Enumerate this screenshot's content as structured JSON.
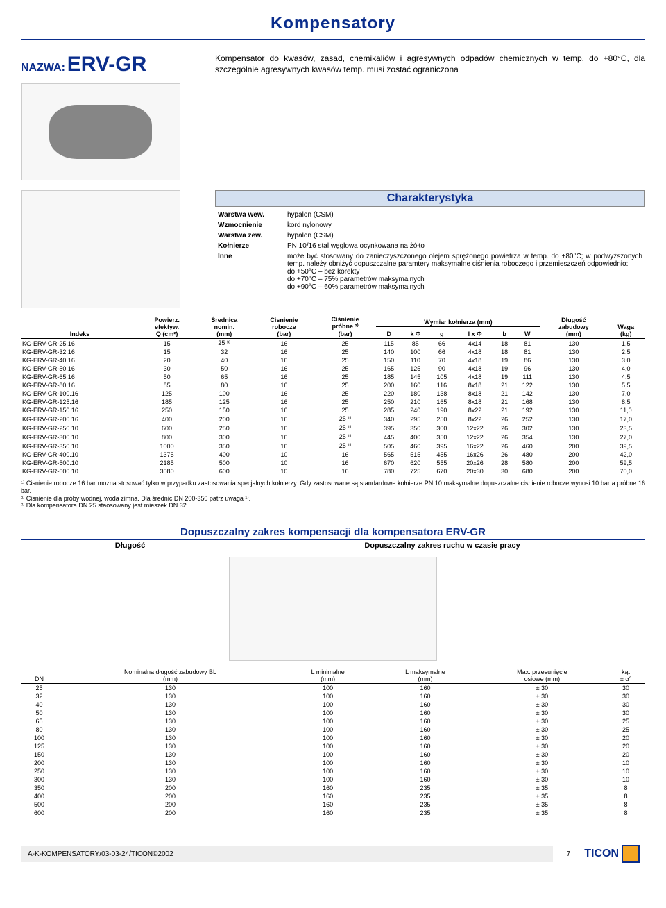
{
  "page_title": "Kompensatory",
  "name_label": "NAZWA:",
  "model": "ERV-GR",
  "description": "Kompensator do kwasów, zasad, chemikaliów i agresywnych odpadów chemicznych w temp. do +80°C, dla szczególnie agresywnych kwasów temp. musi zostać ograniczona",
  "char_title": "Charakterystyka",
  "char_rows": [
    {
      "k": "Warstwa wew.",
      "v": "hypalon (CSM)"
    },
    {
      "k": "Wzmocnienie",
      "v": "kord nylonowy"
    },
    {
      "k": "Warstwa zew.",
      "v": "hypalon (CSM)"
    },
    {
      "k": "Kołnierze",
      "v": "PN 10/16 stal węglowa ocynkowana na żółto"
    },
    {
      "k": "Inne",
      "v": "może być stosowany do zanieczyszczonego olejem sprężonego powietrza w temp. do +80°C; w podwyższonych temp. należy obniżyć dopuszczalne paramtery maksymalne ciśnienia roboczego i przemieszczeń odpowiednio:\ndo +50°C – bez korekty\ndo +70°C – 75% parametrów maksymalnych\ndo +90°C – 60% parametrów maksymalnych"
    }
  ],
  "table1": {
    "headers": {
      "indeks": "Indeks",
      "pow": "Powierz.\nefektyw.\nQ (cm²)",
      "sred": "Średnica\nnomin.\n(mm)",
      "crob": "Cisnienie\nrobocze\n(bar)",
      "cprob": "Ciśnienie\npróbne ²⁾\n(bar)",
      "wymiar": "Wymiar kołnierza (mm)",
      "D": "D",
      "kPhi": "k Φ",
      "g": "g",
      "lxPhi": "l x Φ",
      "b": "b",
      "W": "W",
      "dl": "Długość\nzabudowy\n(mm)",
      "waga": "Waga\n(kg)"
    },
    "rows": [
      [
        "KG-ERV-GR-25.16",
        "15",
        "25 ³⁾",
        "16",
        "25",
        "115",
        "85",
        "66",
        "4x14",
        "18",
        "81",
        "130",
        "1,5"
      ],
      [
        "KG-ERV-GR-32.16",
        "15",
        "32",
        "16",
        "25",
        "140",
        "100",
        "66",
        "4x18",
        "18",
        "81",
        "130",
        "2,5"
      ],
      [
        "KG-ERV-GR-40.16",
        "20",
        "40",
        "16",
        "25",
        "150",
        "110",
        "70",
        "4x18",
        "19",
        "86",
        "130",
        "3,0"
      ],
      [
        "KG-ERV-GR-50.16",
        "30",
        "50",
        "16",
        "25",
        "165",
        "125",
        "90",
        "4x18",
        "19",
        "96",
        "130",
        "4,0"
      ],
      [
        "KG-ERV-GR-65.16",
        "50",
        "65",
        "16",
        "25",
        "185",
        "145",
        "105",
        "4x18",
        "19",
        "111",
        "130",
        "4,5"
      ],
      [
        "KG-ERV-GR-80.16",
        "85",
        "80",
        "16",
        "25",
        "200",
        "160",
        "116",
        "8x18",
        "21",
        "122",
        "130",
        "5,5"
      ],
      [
        "KG-ERV-GR-100.16",
        "125",
        "100",
        "16",
        "25",
        "220",
        "180",
        "138",
        "8x18",
        "21",
        "142",
        "130",
        "7,0"
      ],
      [
        "KG-ERV-GR-125.16",
        "185",
        "125",
        "16",
        "25",
        "250",
        "210",
        "165",
        "8x18",
        "21",
        "168",
        "130",
        "8,5"
      ],
      [
        "KG-ERV-GR-150.16",
        "250",
        "150",
        "16",
        "25",
        "285",
        "240",
        "190",
        "8x22",
        "21",
        "192",
        "130",
        "11,0"
      ],
      [
        "KG-ERV-GR-200.16",
        "400",
        "200",
        "16",
        "25 ¹⁾",
        "340",
        "295",
        "250",
        "8x22",
        "26",
        "252",
        "130",
        "17,0"
      ],
      [
        "KG-ERV-GR-250.10",
        "600",
        "250",
        "16",
        "25 ¹⁾",
        "395",
        "350",
        "300",
        "12x22",
        "26",
        "302",
        "130",
        "23,5"
      ],
      [
        "KG-ERV-GR-300.10",
        "800",
        "300",
        "16",
        "25 ¹⁾",
        "445",
        "400",
        "350",
        "12x22",
        "26",
        "354",
        "130",
        "27,0"
      ],
      [
        "KG-ERV-GR-350.10",
        "1000",
        "350",
        "16",
        "25 ¹⁾",
        "505",
        "460",
        "395",
        "16x22",
        "26",
        "460",
        "200",
        "39,5"
      ],
      [
        "KG-ERV-GR-400.10",
        "1375",
        "400",
        "10",
        "16",
        "565",
        "515",
        "455",
        "16x26",
        "26",
        "480",
        "200",
        "42,0"
      ],
      [
        "KG-ERV-GR-500.10",
        "2185",
        "500",
        "10",
        "16",
        "670",
        "620",
        "555",
        "20x26",
        "28",
        "580",
        "200",
        "59,5"
      ],
      [
        "KG-ERV-GR-600.10",
        "3080",
        "600",
        "10",
        "16",
        "780",
        "725",
        "670",
        "20x30",
        "30",
        "680",
        "200",
        "70,0"
      ]
    ]
  },
  "footnote1": "¹⁾ Cisnienie robocze 16 bar można stosować tylko w przypadku zastosowania specjalnych kołnierzy. Gdy zastosowane są standardowe kołnierze PN 10 maksymalne dopuszczalne cisnienie robocze wynosi 10 bar a próbne 16 bar.",
  "footnote2": "²⁾ Cisnienie dla próby wodnej, woda zimna. Dla średnic DN 200-350 patrz uwaga ¹⁾.",
  "footnote3": "³⁾ Dla kompensatora DN 25 staosowany jest mieszek DN 32.",
  "comp_title": "Dopuszczalny zakres kompensacji dla kompensatora ERV-GR",
  "comp_left": "Długość",
  "comp_right": "Dopuszczalny zakres ruchu w czasie pracy",
  "table2": {
    "headers": [
      "DN",
      "Nominalna długość zabudowy BL\n(mm)",
      "L minimalne\n(mm)",
      "L maksymalne\n(mm)",
      "Max. przesunięcie\nosiowe (mm)",
      "kąt\n± α°"
    ],
    "rows": [
      [
        "25",
        "130",
        "100",
        "160",
        "± 30",
        "30"
      ],
      [
        "32",
        "130",
        "100",
        "160",
        "± 30",
        "30"
      ],
      [
        "40",
        "130",
        "100",
        "160",
        "± 30",
        "30"
      ],
      [
        "50",
        "130",
        "100",
        "160",
        "± 30",
        "30"
      ],
      [
        "65",
        "130",
        "100",
        "160",
        "± 30",
        "25"
      ],
      [
        "80",
        "130",
        "100",
        "160",
        "± 30",
        "25"
      ],
      [
        "100",
        "130",
        "100",
        "160",
        "± 30",
        "20"
      ],
      [
        "125",
        "130",
        "100",
        "160",
        "± 30",
        "20"
      ],
      [
        "150",
        "130",
        "100",
        "160",
        "± 30",
        "20"
      ],
      [
        "200",
        "130",
        "100",
        "160",
        "± 30",
        "10"
      ],
      [
        "250",
        "130",
        "100",
        "160",
        "± 30",
        "10"
      ],
      [
        "300",
        "130",
        "100",
        "160",
        "± 30",
        "10"
      ],
      [
        "350",
        "200",
        "160",
        "235",
        "± 35",
        "8"
      ],
      [
        "400",
        "200",
        "160",
        "235",
        "± 35",
        "8"
      ],
      [
        "500",
        "200",
        "160",
        "235",
        "± 35",
        "8"
      ],
      [
        "600",
        "200",
        "160",
        "235",
        "± 35",
        "8"
      ]
    ]
  },
  "footer_left": "A-K-KOMPENSATORY/03-03-24/TICON©2002",
  "footer_page": "7",
  "footer_logo": "TICON"
}
